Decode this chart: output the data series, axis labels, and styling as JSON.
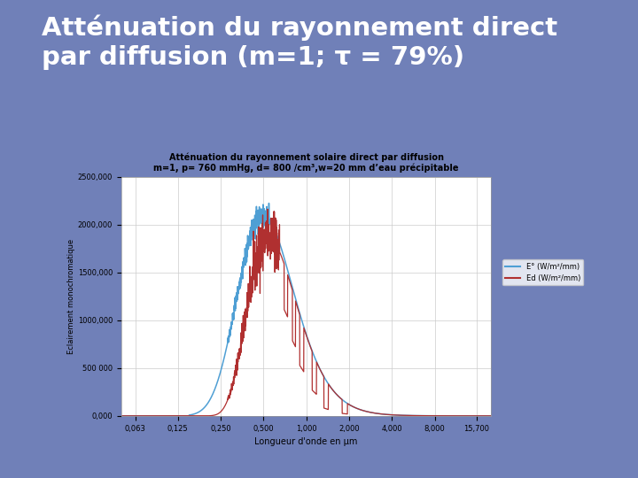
{
  "title_main": "Atténuation du rayonnement direct\npar diffusion (m=1; τ = 79%)",
  "chart_title_line1": "Atténuation du rayonnement solaire direct par diffusion",
  "chart_title_line2": "m=1, p= 760 mmHg, d= 800 /cm³,w=20 mm d’eau précipitable",
  "xlabel": "Longueur d'onde en µm",
  "ylabel": "Eclairement monochromatique",
  "legend_blue": "E° (W/m²/mm)",
  "legend_red": "Ed (W/m²/mm)",
  "background_slide": "#7080b8",
  "background_chart": "#ffffff",
  "color_blue": "#4f9fd4",
  "color_red": "#b03030",
  "title_color": "#ffffff",
  "ylim": [
    0,
    2500000
  ],
  "yticks": [
    0,
    500000,
    1000000,
    1500000,
    2000000,
    2500000
  ],
  "ytick_labels": [
    "0,000",
    "500 000",
    "1000,000",
    "1500,000",
    "2000,000",
    "2500,000"
  ],
  "xticks_log": [
    0.063,
    0.125,
    0.25,
    0.5,
    1.0,
    2.0,
    4.0,
    8.0,
    15.7
  ],
  "xtick_labels": [
    "0,063",
    "0,125",
    "0,250",
    "0,500",
    "1,000",
    "2,000",
    "4,000",
    "8,000",
    "15,700"
  ]
}
